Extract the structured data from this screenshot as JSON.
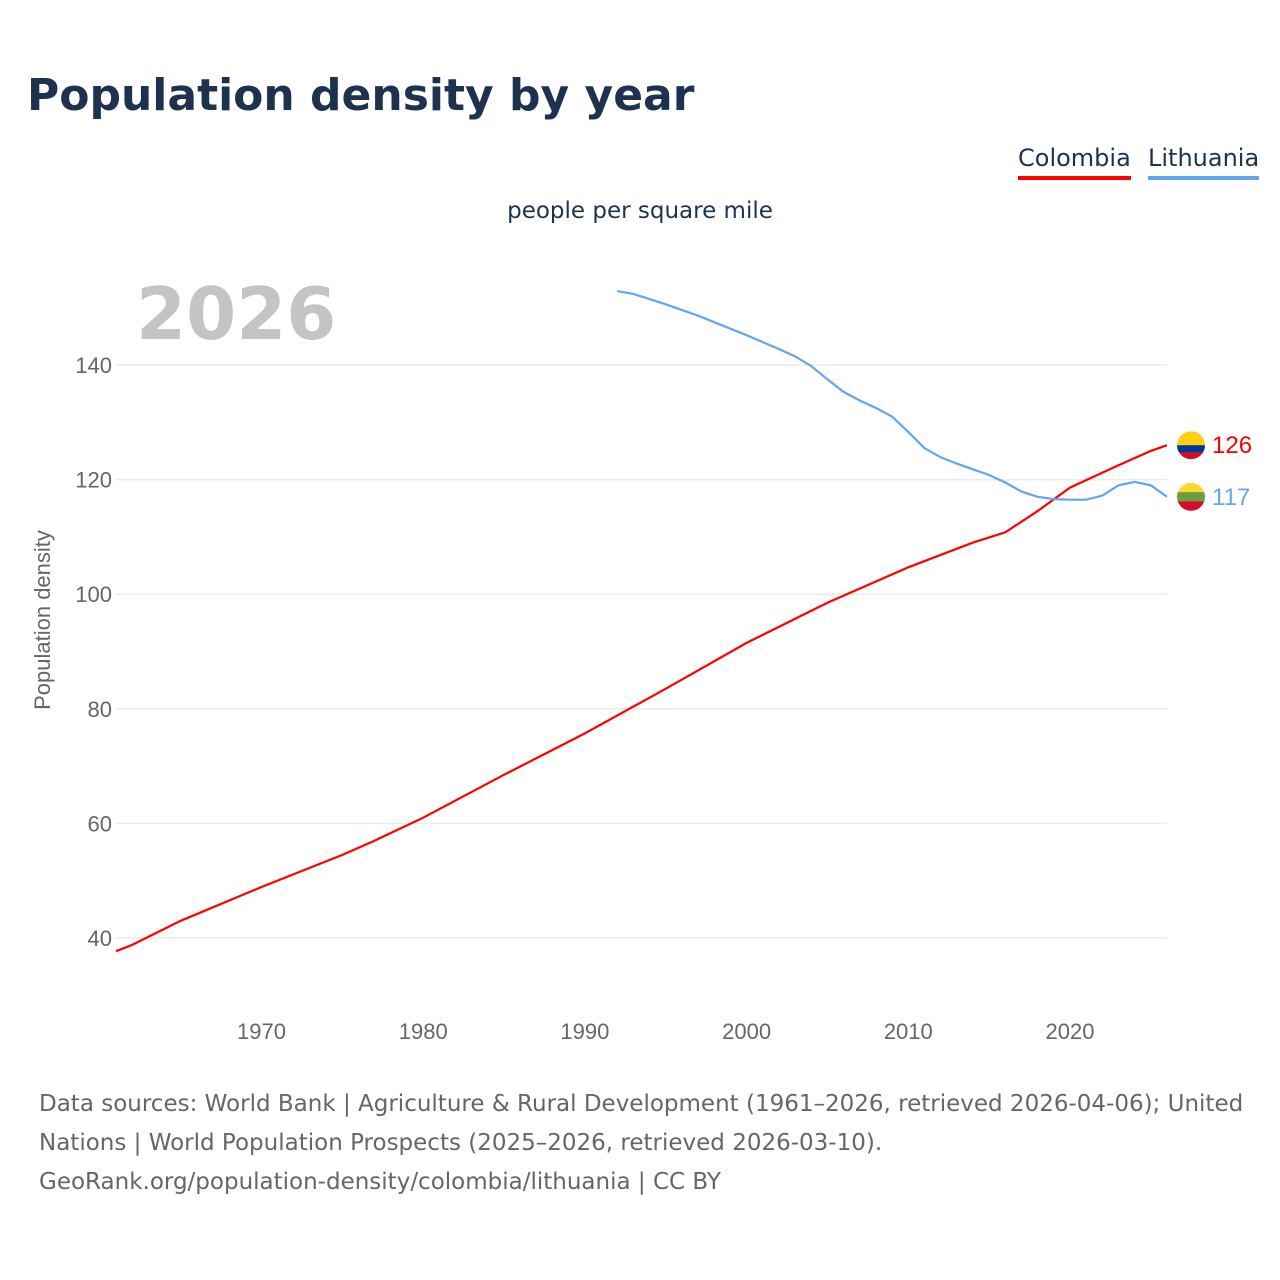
{
  "title": "Population density by year",
  "subtitle": "people per square mile",
  "current_year": "2026",
  "legend": [
    {
      "label": "Colombia",
      "color": "#ff0000"
    },
    {
      "label": "Lithuania",
      "color": "#63a6ec"
    }
  ],
  "end_labels": {
    "colombia": "126",
    "lithuania": "117"
  },
  "source_lines": [
    "Data sources: World Bank | Agriculture & Rural Development (1961–2026, retrieved 2026-04-06); United Nations | World Population Prospects (2025–2026, retrieved 2026-03-10).",
    "GeoRank.org/population-density/colombia/lithuania | CC BY"
  ],
  "chart_data": {
    "type": "line",
    "title": "Population density by year",
    "xlabel": "",
    "ylabel": "Population density",
    "xlim": [
      1961,
      2026
    ],
    "ylim": [
      35,
      155
    ],
    "x_ticks": [
      1970,
      1980,
      1990,
      2000,
      2010,
      2020
    ],
    "y_ticks": [
      40,
      60,
      80,
      100,
      120,
      140
    ],
    "grid": true,
    "legend_position": "top-right",
    "series": [
      {
        "name": "Colombia",
        "color": "#ff0000",
        "x": [
          1961,
          1962,
          1965,
          1970,
          1975,
          1977,
          1980,
          1985,
          1990,
          1995,
          2000,
          2005,
          2010,
          2014,
          2016,
          2018,
          2020,
          2023,
          2025,
          2026
        ],
        "y": [
          37.7,
          38.8,
          43,
          48.9,
          54.5,
          57,
          61,
          68.5,
          75.7,
          83.5,
          91.5,
          98.5,
          104.7,
          109,
          110.8,
          114.5,
          118.6,
          122.5,
          125,
          126
        ]
      },
      {
        "name": "Lithuania",
        "color": "#63a6ec",
        "x": [
          1992,
          1993,
          1995,
          1997,
          2000,
          2002,
          2003,
          2004,
          2005,
          2006,
          2007,
          2008,
          2009,
          2010,
          2011,
          2012,
          2013,
          2014,
          2015,
          2016,
          2017,
          2018,
          2019,
          2020,
          2021,
          2022,
          2023,
          2024,
          2025,
          2026
        ],
        "y": [
          152.9,
          152.4,
          150.6,
          148.6,
          145.2,
          142.8,
          141.5,
          139.8,
          137.5,
          135.3,
          133.8,
          132.5,
          131,
          128.3,
          125.5,
          123.9,
          122.8,
          121.8,
          120.8,
          119.5,
          117.9,
          117,
          116.6,
          116.5,
          116.5,
          117.2,
          119,
          119.6,
          119,
          117
        ]
      }
    ]
  }
}
